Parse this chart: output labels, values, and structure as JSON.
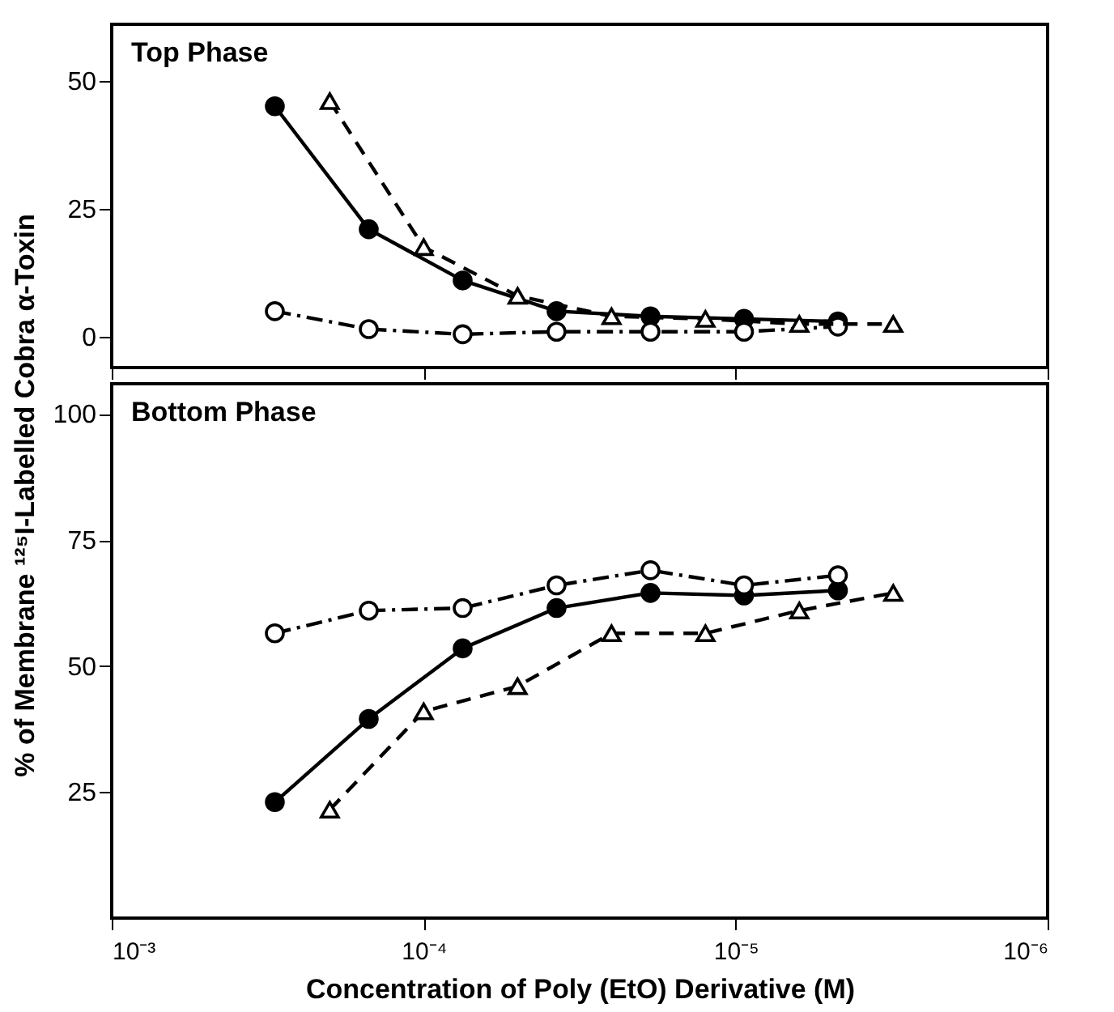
{
  "chart_data": [
    {
      "type": "line",
      "title": "Top Phase",
      "xlim": [
        0.001,
        1e-06
      ],
      "xticks": [
        {
          "value": 0.001,
          "label": null
        },
        {
          "value": 0.0001,
          "label": null
        },
        {
          "value": 1e-05,
          "label": null
        },
        {
          "value": 1e-06,
          "label": null
        }
      ],
      "ylim": [
        -6,
        61
      ],
      "yticks": [
        0,
        25,
        50
      ],
      "log": "x",
      "grid": false,
      "legend": false,
      "tick_labels": "y",
      "series": [
        {
          "color": "#000000",
          "marker": "circle",
          "line_style": "solid",
          "x": [
            0.0003,
            0.00015,
            7.5e-05,
            3.75e-05,
            1.875e-05,
            9.4e-06,
            4.7e-06
          ],
          "values": [
            45,
            21,
            11,
            5,
            4,
            3.5,
            3
          ]
        },
        {
          "color": "#000000",
          "marker": "circle",
          "line_style": "dashdot",
          "x": [
            0.0003,
            0.00015,
            7.5e-05,
            3.75e-05,
            1.875e-05,
            9.4e-06,
            4.7e-06
          ],
          "values": [
            5,
            1.5,
            0.5,
            1,
            1,
            1,
            2
          ]
        },
        {
          "color": "#000000",
          "marker": "triangle",
          "line_style": "dashed",
          "x": [
            0.0002,
            0.0001,
            5e-05,
            2.5e-05,
            1.25e-05,
            6.25e-06,
            3.125e-06
          ],
          "values": [
            46,
            17.5,
            8,
            4,
            3.5,
            2.5,
            2.5
          ]
        }
      ]
    },
    {
      "type": "line",
      "title": "Bottom Phase",
      "xlabel": "Concentration of Poly (EtO) Derivative (M)",
      "ylabel": "% of Membrane ¹²⁵I-Labelled Cobra α-Toxin",
      "xlim": [
        0.001,
        1e-06
      ],
      "xticks": [
        {
          "value": 0.001,
          "label": "10⁻³"
        },
        {
          "value": 0.0001,
          "label": "10⁻⁴"
        },
        {
          "value": 1e-05,
          "label": "10⁻⁵"
        },
        {
          "value": 1e-06,
          "label": "10⁻⁶"
        }
      ],
      "ylim": [
        0,
        106
      ],
      "yticks": [
        25,
        50,
        75,
        100
      ],
      "log": "x",
      "grid": false,
      "legend": false,
      "series": [
        {
          "color": "#000000",
          "marker": "circle",
          "line_style": "solid",
          "x": [
            0.0003,
            0.00015,
            7.5e-05,
            3.75e-05,
            1.875e-05,
            9.4e-06,
            4.7e-06
          ],
          "values": [
            23,
            39.5,
            53.5,
            61.5,
            64.5,
            64,
            65
          ]
        },
        {
          "color": "#000000",
          "marker": "circle",
          "line_style": "dashdot",
          "x": [
            0.0003,
            0.00015,
            7.5e-05,
            3.75e-05,
            1.875e-05,
            9.4e-06,
            4.7e-06
          ],
          "values": [
            56.5,
            61,
            61.5,
            66,
            69,
            66,
            68
          ]
        },
        {
          "color": "#000000",
          "marker": "triangle",
          "line_style": "dashed",
          "x": [
            0.0002,
            0.0001,
            5e-05,
            2.5e-05,
            1.25e-05,
            6.25e-06,
            3.125e-06
          ],
          "values": [
            21.5,
            41,
            46,
            56.5,
            56.5,
            61,
            64.5
          ]
        }
      ]
    }
  ]
}
